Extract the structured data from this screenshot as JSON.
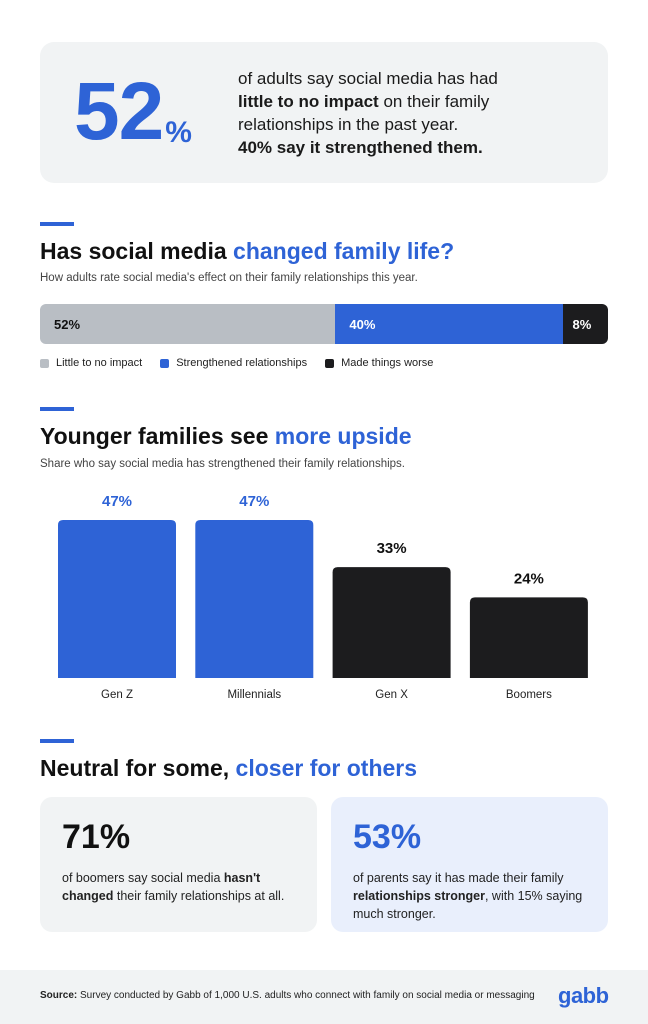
{
  "hero": {
    "number": "52",
    "percent_sign": "%",
    "line1": "of adults say social media has had",
    "bold": "little to no impact",
    "line2": " on their family relationships in the past year.",
    "line3": "40% say it strengthened them."
  },
  "section1": {
    "title_plain": "Has social media ",
    "title_blue": "changed family life?",
    "subtitle": "How adults rate social media's effect on their family relationships this year."
  },
  "section2": {
    "title_plain": "Younger families see ",
    "title_blue": "more upside",
    "subtitle": "Share who say social media has strengthened their family relationships."
  },
  "section3": {
    "title_plain": "Neutral for some, ",
    "title_blue": "closer for others"
  },
  "cards": [
    {
      "number": "71%",
      "pre": "of boomers say social media ",
      "bold": "hasn't changed",
      "post": " their family relationships at all."
    },
    {
      "number": "53%",
      "pre": "of parents say it has made their family ",
      "bold": "relationships stronger",
      "post": ", with 15% saying much stronger."
    }
  ],
  "footer": {
    "source_label": "Source:",
    "source_text": " Survey conducted by Gabb of 1,000 U.S. adults who connect with family on social media or messaging",
    "logo": "gabb"
  },
  "colors": {
    "blue": "#2e63d6",
    "gray": "#b9bec4",
    "black": "#1c1c1e",
    "card_light": "#f1f3f4",
    "card_blue": "#e9effc"
  },
  "chart_data": [
    {
      "type": "bar",
      "orientation": "horizontal-stacked",
      "series": [
        {
          "name": "Little to no impact",
          "value": 52,
          "label": "52%",
          "color": "#b9bec4",
          "text_color": "#111111"
        },
        {
          "name": "Strengthened relationships",
          "value": 40,
          "label": "40%",
          "color": "#2e63d6",
          "text_color": "#ffffff"
        },
        {
          "name": "Made things worse",
          "value": 8,
          "label": "8%",
          "color": "#1c1c1e",
          "text_color": "#ffffff"
        }
      ],
      "legend_position": "bottom-left",
      "xlim": [
        0,
        100
      ]
    },
    {
      "type": "bar",
      "categories": [
        "Gen Z",
        "Millennials",
        "Gen X",
        "Boomers"
      ],
      "values": [
        47,
        47,
        33,
        24
      ],
      "value_labels": [
        "47%",
        "47%",
        "33%",
        "24%"
      ],
      "colors": [
        "#2e63d6",
        "#2e63d6",
        "#1c1c1e",
        "#1c1c1e"
      ],
      "label_colors": [
        "#2e63d6",
        "#2e63d6",
        "#111111",
        "#111111"
      ],
      "ylim": [
        0,
        47
      ],
      "grid": false
    }
  ]
}
